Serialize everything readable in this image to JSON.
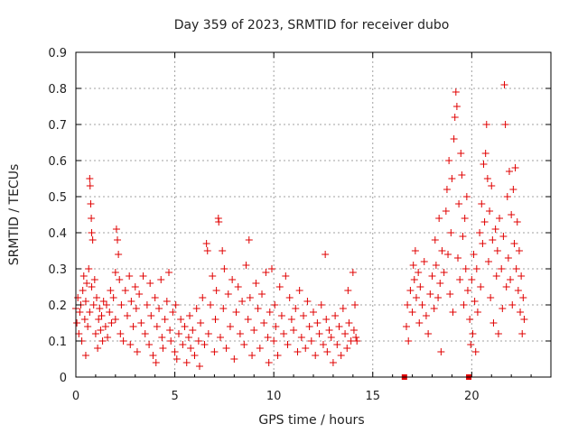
{
  "chart_data": {
    "type": "scatter",
    "title": "Day 359 of 2023, SRMTID for receiver dubo",
    "xlabel": "GPS time / hours",
    "ylabel": "SRMTID / TECUs",
    "xlim": [
      0,
      24
    ],
    "ylim": [
      0,
      0.9
    ],
    "xticks": [
      0,
      5,
      10,
      15,
      20
    ],
    "yticks": [
      0,
      0.1,
      0.2,
      0.3,
      0.4,
      0.5,
      0.6,
      0.7,
      0.8,
      0.9
    ],
    "tick_labels_x": [
      "0",
      "5",
      "10",
      "15",
      "20"
    ],
    "tick_labels_y": [
      "0",
      "0.1",
      "0.2",
      "0.3",
      "0.4",
      "0.5",
      "0.6",
      "0.7",
      "0.8",
      "0.9"
    ],
    "grid": true,
    "marker": "plus",
    "color": "#e00000",
    "series": [
      {
        "name": "SRMTID",
        "points": [
          [
            0.0,
            0.19
          ],
          [
            0.05,
            0.15
          ],
          [
            0.1,
            0.22
          ],
          [
            0.15,
            0.12
          ],
          [
            0.2,
            0.18
          ],
          [
            0.25,
            0.2
          ],
          [
            0.3,
            0.1
          ],
          [
            0.35,
            0.24
          ],
          [
            0.4,
            0.28
          ],
          [
            0.45,
            0.16
          ],
          [
            0.5,
            0.06
          ],
          [
            0.5,
            0.21
          ],
          [
            0.55,
            0.26
          ],
          [
            0.6,
            0.14
          ],
          [
            0.65,
            0.3
          ],
          [
            0.7,
            0.18
          ],
          [
            0.7,
            0.55
          ],
          [
            0.72,
            0.53
          ],
          [
            0.75,
            0.48
          ],
          [
            0.78,
            0.44
          ],
          [
            0.8,
            0.4
          ],
          [
            0.8,
            0.25
          ],
          [
            0.85,
            0.38
          ],
          [
            0.9,
            0.2
          ],
          [
            0.95,
            0.27
          ],
          [
            1.0,
            0.12
          ],
          [
            1.05,
            0.22
          ],
          [
            1.1,
            0.08
          ],
          [
            1.15,
            0.16
          ],
          [
            1.2,
            0.19
          ],
          [
            1.25,
            0.13
          ],
          [
            1.3,
            0.17
          ],
          [
            1.35,
            0.1
          ],
          [
            1.4,
            0.21
          ],
          [
            1.5,
            0.14
          ],
          [
            1.55,
            0.2
          ],
          [
            1.6,
            0.11
          ],
          [
            1.7,
            0.18
          ],
          [
            1.75,
            0.24
          ],
          [
            1.8,
            0.15
          ],
          [
            1.9,
            0.22
          ],
          [
            2.0,
            0.16
          ],
          [
            2.0,
            0.29
          ],
          [
            2.05,
            0.41
          ],
          [
            2.1,
            0.38
          ],
          [
            2.15,
            0.34
          ],
          [
            2.2,
            0.27
          ],
          [
            2.25,
            0.12
          ],
          [
            2.3,
            0.2
          ],
          [
            2.4,
            0.1
          ],
          [
            2.5,
            0.24
          ],
          [
            2.6,
            0.17
          ],
          [
            2.7,
            0.28
          ],
          [
            2.75,
            0.09
          ],
          [
            2.8,
            0.21
          ],
          [
            2.9,
            0.14
          ],
          [
            3.0,
            0.25
          ],
          [
            3.05,
            0.19
          ],
          [
            3.1,
            0.07
          ],
          [
            3.2,
            0.23
          ],
          [
            3.3,
            0.15
          ],
          [
            3.4,
            0.28
          ],
          [
            3.5,
            0.12
          ],
          [
            3.6,
            0.2
          ],
          [
            3.7,
            0.09
          ],
          [
            3.75,
            0.26
          ],
          [
            3.8,
            0.17
          ],
          [
            3.9,
            0.06
          ],
          [
            4.0,
            0.22
          ],
          [
            4.05,
            0.04
          ],
          [
            4.1,
            0.14
          ],
          [
            4.2,
            0.19
          ],
          [
            4.3,
            0.27
          ],
          [
            4.35,
            0.11
          ],
          [
            4.4,
            0.08
          ],
          [
            4.5,
            0.16
          ],
          [
            4.6,
            0.21
          ],
          [
            4.7,
            0.29
          ],
          [
            4.75,
            0.13
          ],
          [
            4.8,
            0.1
          ],
          [
            4.9,
            0.18
          ],
          [
            5.0,
            0.07
          ],
          [
            5.05,
            0.2
          ],
          [
            5.1,
            0.05
          ],
          [
            5.2,
            0.12
          ],
          [
            5.3,
            0.16
          ],
          [
            5.4,
            0.09
          ],
          [
            5.5,
            0.14
          ],
          [
            5.6,
            0.04
          ],
          [
            5.7,
            0.11
          ],
          [
            5.75,
            0.17
          ],
          [
            5.8,
            0.08
          ],
          [
            5.9,
            0.13
          ],
          [
            6.0,
            0.06
          ],
          [
            6.1,
            0.19
          ],
          [
            6.2,
            0.1
          ],
          [
            6.25,
            0.03
          ],
          [
            6.3,
            0.15
          ],
          [
            6.4,
            0.22
          ],
          [
            6.5,
            0.09
          ],
          [
            6.6,
            0.37
          ],
          [
            6.65,
            0.35
          ],
          [
            6.7,
            0.12
          ],
          [
            6.8,
            0.2
          ],
          [
            6.9,
            0.28
          ],
          [
            7.0,
            0.07
          ],
          [
            7.05,
            0.16
          ],
          [
            7.1,
            0.24
          ],
          [
            7.2,
            0.44
          ],
          [
            7.22,
            0.43
          ],
          [
            7.3,
            0.11
          ],
          [
            7.4,
            0.35
          ],
          [
            7.45,
            0.19
          ],
          [
            7.5,
            0.3
          ],
          [
            7.6,
            0.08
          ],
          [
            7.7,
            0.23
          ],
          [
            7.8,
            0.14
          ],
          [
            7.9,
            0.27
          ],
          [
            8.0,
            0.05
          ],
          [
            8.1,
            0.18
          ],
          [
            8.2,
            0.25
          ],
          [
            8.3,
            0.12
          ],
          [
            8.4,
            0.21
          ],
          [
            8.5,
            0.09
          ],
          [
            8.6,
            0.31
          ],
          [
            8.7,
            0.16
          ],
          [
            8.75,
            0.38
          ],
          [
            8.8,
            0.22
          ],
          [
            8.9,
            0.06
          ],
          [
            9.0,
            0.13
          ],
          [
            9.1,
            0.26
          ],
          [
            9.2,
            0.19
          ],
          [
            9.3,
            0.08
          ],
          [
            9.4,
            0.23
          ],
          [
            9.5,
            0.15
          ],
          [
            9.6,
            0.29
          ],
          [
            9.7,
            0.11
          ],
          [
            9.75,
            0.04
          ],
          [
            9.8,
            0.18
          ],
          [
            9.9,
            0.3
          ],
          [
            10.0,
            0.1
          ],
          [
            10.05,
            0.2
          ],
          [
            10.1,
            0.14
          ],
          [
            10.2,
            0.06
          ],
          [
            10.3,
            0.25
          ],
          [
            10.4,
            0.17
          ],
          [
            10.5,
            0.12
          ],
          [
            10.6,
            0.28
          ],
          [
            10.7,
            0.09
          ],
          [
            10.8,
            0.22
          ],
          [
            10.9,
            0.16
          ],
          [
            11.0,
            0.13
          ],
          [
            11.1,
            0.19
          ],
          [
            11.2,
            0.07
          ],
          [
            11.3,
            0.24
          ],
          [
            11.4,
            0.11
          ],
          [
            11.5,
            0.17
          ],
          [
            11.6,
            0.08
          ],
          [
            11.7,
            0.21
          ],
          [
            11.8,
            0.14
          ],
          [
            11.9,
            0.1
          ],
          [
            12.0,
            0.18
          ],
          [
            12.1,
            0.06
          ],
          [
            12.2,
            0.15
          ],
          [
            12.3,
            0.12
          ],
          [
            12.4,
            0.2
          ],
          [
            12.5,
            0.09
          ],
          [
            12.6,
            0.34
          ],
          [
            12.65,
            0.16
          ],
          [
            12.7,
            0.07
          ],
          [
            12.8,
            0.13
          ],
          [
            12.9,
            0.11
          ],
          [
            13.0,
            0.04
          ],
          [
            13.1,
            0.17
          ],
          [
            13.2,
            0.09
          ],
          [
            13.3,
            0.14
          ],
          [
            13.4,
            0.06
          ],
          [
            13.5,
            0.19
          ],
          [
            13.6,
            0.12
          ],
          [
            13.7,
            0.08
          ],
          [
            13.75,
            0.24
          ],
          [
            13.8,
            0.15
          ],
          [
            13.9,
            0.1
          ],
          [
            14.0,
            0.29
          ],
          [
            14.05,
            0.13
          ],
          [
            14.1,
            0.2
          ],
          [
            14.15,
            0.11
          ],
          [
            14.2,
            0.1
          ],
          [
            16.6,
            0.0
          ],
          [
            16.7,
            0.14
          ],
          [
            16.75,
            0.2
          ],
          [
            16.8,
            0.1
          ],
          [
            16.9,
            0.24
          ],
          [
            17.0,
            0.18
          ],
          [
            17.05,
            0.31
          ],
          [
            17.1,
            0.27
          ],
          [
            17.15,
            0.35
          ],
          [
            17.2,
            0.22
          ],
          [
            17.3,
            0.29
          ],
          [
            17.35,
            0.15
          ],
          [
            17.4,
            0.25
          ],
          [
            17.5,
            0.2
          ],
          [
            17.6,
            0.32
          ],
          [
            17.7,
            0.17
          ],
          [
            17.8,
            0.12
          ],
          [
            17.9,
            0.23
          ],
          [
            18.0,
            0.28
          ],
          [
            18.1,
            0.19
          ],
          [
            18.15,
            0.38
          ],
          [
            18.2,
            0.31
          ],
          [
            18.3,
            0.22
          ],
          [
            18.35,
            0.44
          ],
          [
            18.4,
            0.26
          ],
          [
            18.45,
            0.07
          ],
          [
            18.5,
            0.35
          ],
          [
            18.6,
            0.29
          ],
          [
            18.7,
            0.46
          ],
          [
            18.75,
            0.52
          ],
          [
            18.8,
            0.34
          ],
          [
            18.85,
            0.6
          ],
          [
            18.9,
            0.23
          ],
          [
            18.95,
            0.4
          ],
          [
            19.0,
            0.55
          ],
          [
            19.05,
            0.18
          ],
          [
            19.1,
            0.66
          ],
          [
            19.15,
            0.72
          ],
          [
            19.2,
            0.79
          ],
          [
            19.25,
            0.75
          ],
          [
            19.3,
            0.33
          ],
          [
            19.35,
            0.48
          ],
          [
            19.4,
            0.27
          ],
          [
            19.45,
            0.62
          ],
          [
            19.5,
            0.56
          ],
          [
            19.55,
            0.39
          ],
          [
            19.6,
            0.2
          ],
          [
            19.65,
            0.44
          ],
          [
            19.7,
            0.3
          ],
          [
            19.75,
            0.5
          ],
          [
            19.8,
            0.24
          ],
          [
            19.85,
            0.0
          ],
          [
            19.9,
            0.16
          ],
          [
            19.95,
            0.09
          ],
          [
            20.0,
            0.27
          ],
          [
            20.05,
            0.12
          ],
          [
            20.1,
            0.34
          ],
          [
            20.15,
            0.21
          ],
          [
            20.2,
            0.07
          ],
          [
            20.25,
            0.3
          ],
          [
            20.3,
            0.18
          ],
          [
            20.4,
            0.4
          ],
          [
            20.45,
            0.25
          ],
          [
            20.5,
            0.48
          ],
          [
            20.55,
            0.37
          ],
          [
            20.6,
            0.59
          ],
          [
            20.65,
            0.43
          ],
          [
            20.7,
            0.62
          ],
          [
            20.75,
            0.7
          ],
          [
            20.8,
            0.55
          ],
          [
            20.85,
            0.32
          ],
          [
            20.9,
            0.46
          ],
          [
            20.95,
            0.22
          ],
          [
            21.0,
            0.53
          ],
          [
            21.05,
            0.38
          ],
          [
            21.1,
            0.15
          ],
          [
            21.2,
            0.41
          ],
          [
            21.25,
            0.28
          ],
          [
            21.3,
            0.35
          ],
          [
            21.35,
            0.12
          ],
          [
            21.4,
            0.44
          ],
          [
            21.5,
            0.3
          ],
          [
            21.55,
            0.19
          ],
          [
            21.6,
            0.39
          ],
          [
            21.65,
            0.81
          ],
          [
            21.7,
            0.7
          ],
          [
            21.75,
            0.25
          ],
          [
            21.8,
            0.5
          ],
          [
            21.85,
            0.33
          ],
          [
            21.9,
            0.57
          ],
          [
            21.95,
            0.27
          ],
          [
            22.0,
            0.45
          ],
          [
            22.05,
            0.2
          ],
          [
            22.1,
            0.52
          ],
          [
            22.15,
            0.37
          ],
          [
            22.2,
            0.58
          ],
          [
            22.25,
            0.3
          ],
          [
            22.3,
            0.43
          ],
          [
            22.35,
            0.24
          ],
          [
            22.4,
            0.35
          ],
          [
            22.45,
            0.18
          ],
          [
            22.5,
            0.28
          ],
          [
            22.55,
            0.12
          ],
          [
            22.6,
            0.22
          ],
          [
            22.65,
            0.16
          ]
        ]
      }
    ]
  }
}
